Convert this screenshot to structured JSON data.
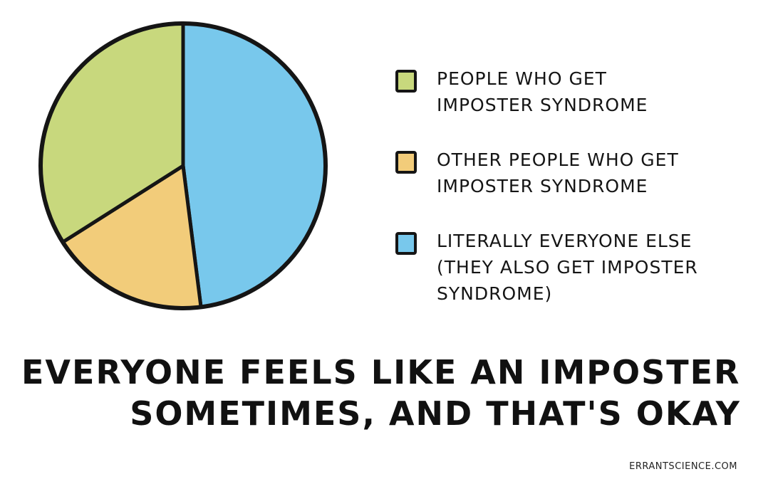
{
  "chart_data": {
    "type": "pie",
    "slices": [
      {
        "label": "People who get imposter syndrome",
        "value": 34,
        "color": "#C8D87D"
      },
      {
        "label": "Other people who get imposter syndrome",
        "value": 18,
        "color": "#F2CC7A"
      },
      {
        "label": "Literally everyone else (they also get imposter syndrome)",
        "value": 48,
        "color": "#78C8EC"
      }
    ]
  },
  "legend": {
    "items": [
      {
        "line1": "People who get",
        "line2": "imposter syndrome",
        "line3": ""
      },
      {
        "line1": "Other people who get",
        "line2": "imposter syndrome",
        "line3": ""
      },
      {
        "line1": "Literally everyone else",
        "line2": "(they also get imposter",
        "line3": "syndrome)"
      }
    ]
  },
  "headline": {
    "line1": "Everyone feels like an imposter",
    "line2": "sometimes, and that's okay"
  },
  "credit": "ErrantScience.com"
}
